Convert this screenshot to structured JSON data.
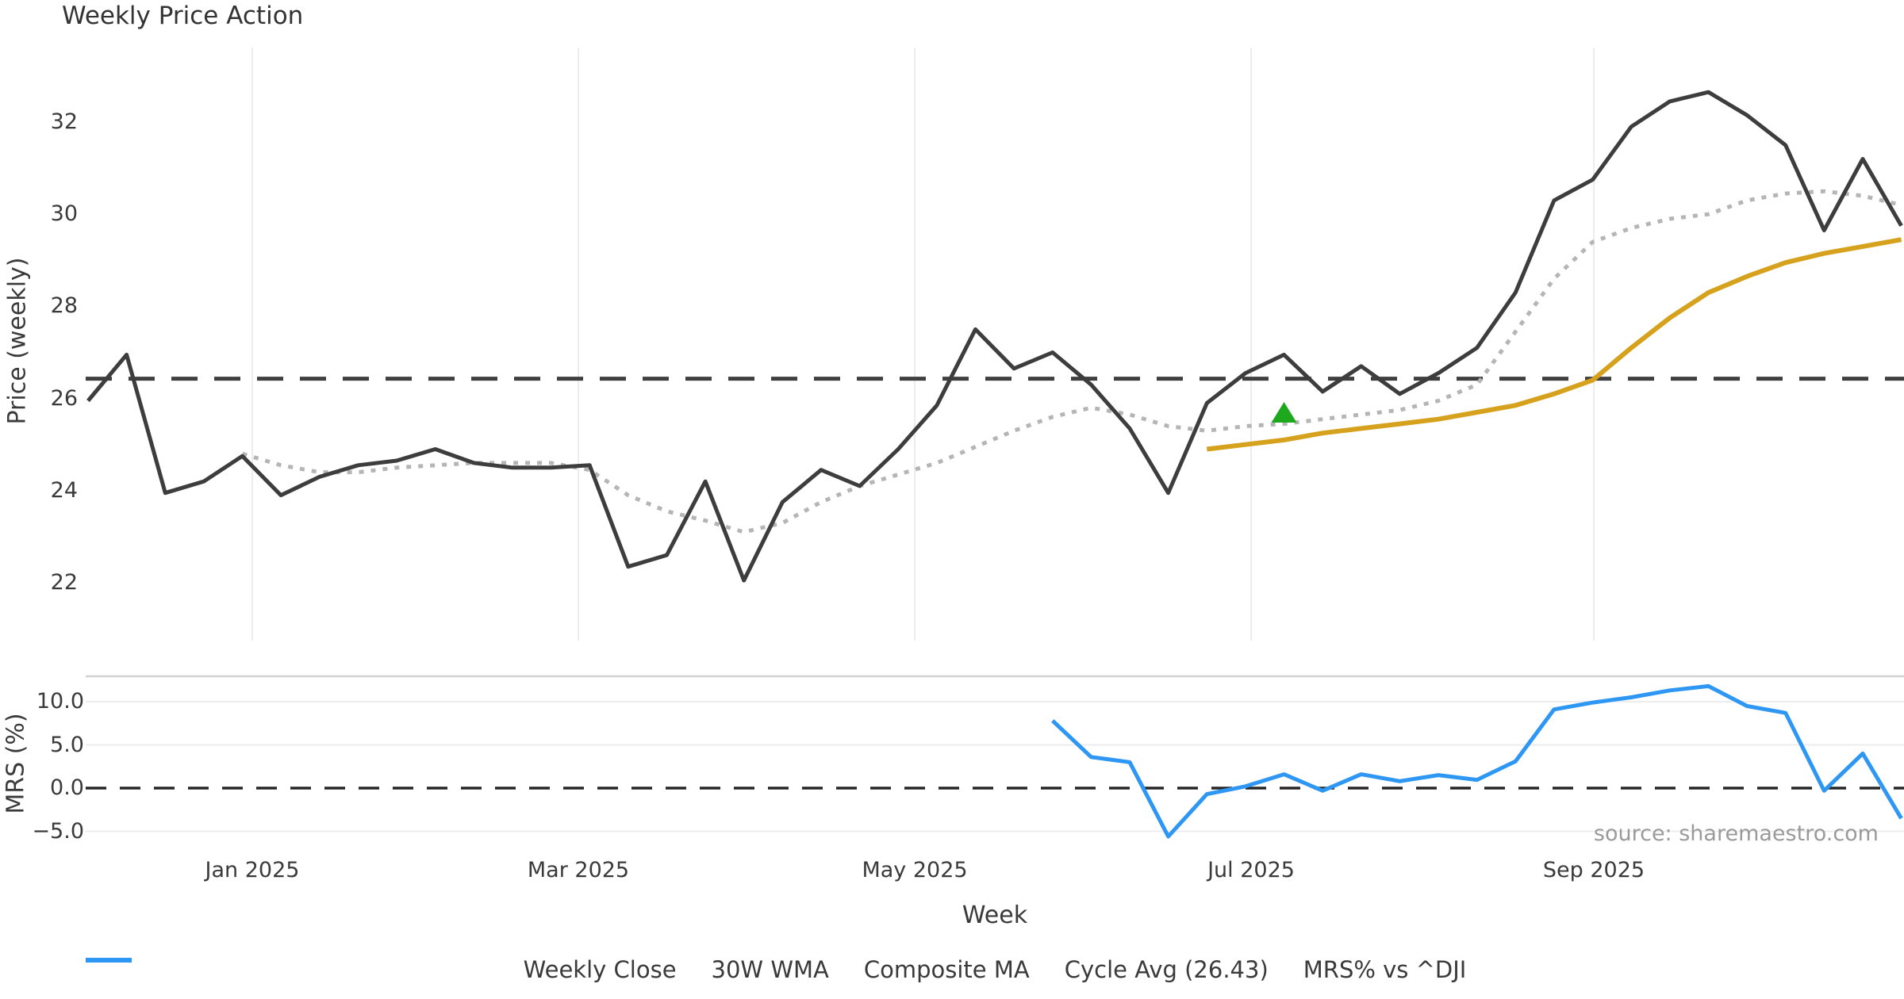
{
  "chart_data": {
    "type": "line",
    "title": "Weekly Price Action",
    "x_axis": {
      "label": "Week",
      "tick_labels": [
        "Jan 2025",
        "Mar 2025",
        "May 2025",
        "Jul 2025",
        "Sep 2025"
      ]
    },
    "panels": [
      {
        "name": "price",
        "ylabel": "Price (weekly)",
        "ylim": [
          21.0,
          33.5
        ],
        "ytick_labels": [
          "32",
          "30",
          "28",
          "26",
          "24",
          "22"
        ],
        "ytick_values": [
          32,
          30,
          28,
          26,
          24,
          22
        ],
        "grid": "vertical-months",
        "cycle_avg_value": 26.43,
        "signal_marker": {
          "shape": "triangle-up",
          "week_index": 31,
          "value": 25.7,
          "color": "#1ea81e"
        },
        "series": [
          {
            "name": "Weekly Close",
            "color": "#3d3d3d",
            "style": "solid",
            "width": 5,
            "start_index": 0,
            "values": [
              25.95,
              26.95,
              23.95,
              24.2,
              24.75,
              23.9,
              24.3,
              24.55,
              24.65,
              24.9,
              24.6,
              24.5,
              24.5,
              24.55,
              22.35,
              22.6,
              24.2,
              22.05,
              23.75,
              24.45,
              24.1,
              24.9,
              25.85,
              27.5,
              26.65,
              27.0,
              26.3,
              25.35,
              23.95,
              25.9,
              26.55,
              26.95,
              26.15,
              26.7,
              26.1,
              26.55,
              27.1,
              28.3,
              30.3,
              30.75,
              31.9,
              32.45,
              32.65,
              32.15,
              31.5,
              29.65,
              31.2,
              29.75
            ]
          },
          {
            "name": "30W WMA",
            "color": "#d6a21e",
            "style": "solid",
            "width": 6,
            "start_index": 29,
            "values": [
              24.9,
              25.0,
              25.1,
              25.25,
              25.35,
              25.45,
              25.55,
              25.7,
              25.85,
              26.1,
              26.4,
              27.1,
              27.75,
              28.3,
              28.65,
              28.95,
              29.15,
              29.3,
              29.45
            ]
          },
          {
            "name": "Composite MA",
            "color": "#b5b5b5",
            "style": "dotted",
            "width": 5,
            "start_index": 4,
            "values": [
              24.8,
              24.55,
              24.4,
              24.4,
              24.5,
              24.55,
              24.6,
              24.6,
              24.6,
              24.45,
              23.9,
              23.55,
              23.35,
              23.1,
              23.3,
              23.75,
              24.1,
              24.35,
              24.6,
              24.95,
              25.3,
              25.6,
              25.8,
              25.65,
              25.4,
              25.3,
              25.4,
              25.45,
              25.55,
              25.65,
              25.75,
              25.95,
              26.3,
              27.45,
              28.6,
              29.4,
              29.7,
              29.9,
              30.0,
              30.3,
              30.45,
              30.5,
              30.4,
              30.2
            ]
          },
          {
            "name": "Cycle Avg (26.43)",
            "color": "#3f3f3f",
            "style": "dashed",
            "width": 5,
            "start_index": 0,
            "values": []
          }
        ]
      },
      {
        "name": "mrs",
        "ylabel": "MRS (%)",
        "ylim": [
          -6.5,
          12.9
        ],
        "ytick_labels": [
          "10.0",
          "5.0",
          "0.0",
          "−5.0"
        ],
        "ytick_values": [
          10,
          5,
          0,
          -5
        ],
        "grid": "horizontal",
        "zero_line_value": 0.0,
        "source_note": "source: sharemaestro.com",
        "series": [
          {
            "name": "MRS% vs ^DJI",
            "color": "#2e96f3",
            "style": "solid",
            "width": 5,
            "start_index": 25,
            "values": [
              7.8,
              3.6,
              3.0,
              -5.6,
              -0.7,
              0.2,
              1.6,
              -0.3,
              1.6,
              0.8,
              1.5,
              0.95,
              3.1,
              9.1,
              9.9,
              10.5,
              11.3,
              11.8,
              9.5,
              8.7,
              -0.3,
              4.0,
              -3.5
            ]
          }
        ]
      }
    ],
    "legend": [
      {
        "label": "Weekly Close",
        "color": "#3d3d3d",
        "style": "solid"
      },
      {
        "label": "30W WMA",
        "color": "#d6a21e",
        "style": "solid"
      },
      {
        "label": "Composite MA",
        "color": "#b5b5b5",
        "style": "dotted"
      },
      {
        "label": "Cycle Avg (26.43)",
        "color": "#3f3f3f",
        "style": "dashed"
      },
      {
        "label": "MRS% vs ^DJI",
        "color": "#2e96f3",
        "style": "solid"
      }
    ],
    "legend_position": "bottom-center"
  }
}
